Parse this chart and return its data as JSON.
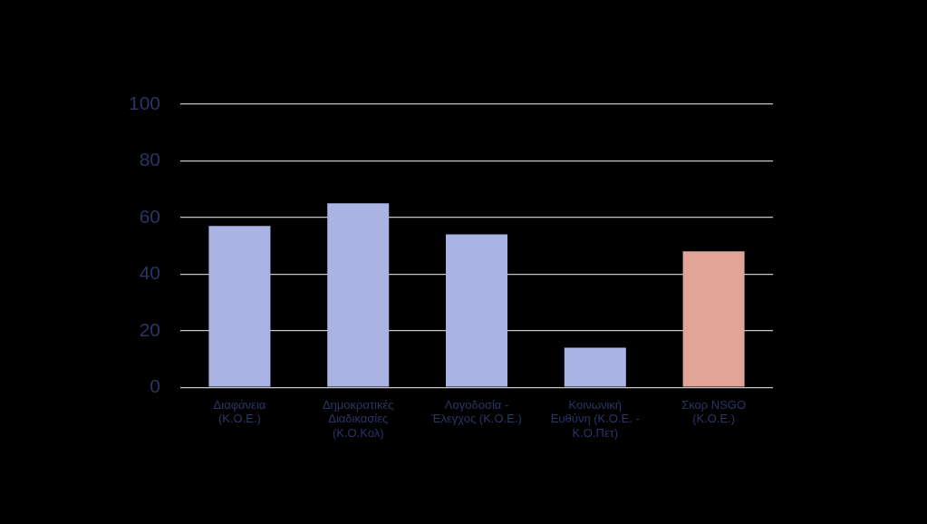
{
  "chart_data": {
    "type": "bar",
    "categories": [
      "Διαφάνεια (Κ.Ο.Ε.)",
      "Δημοκρατικές Διαδικασίες (Κ.Ο.Κολ)",
      "Λογοδοσία - Έλεγχος (Κ.Ο.Ε.)",
      "Κοινωνική Ευθύνη (Κ.Ο.Ε. - Κ.Ο.Πετ)",
      "Σκορ NSGO (Κ.Ο.Ε.)"
    ],
    "values": [
      57,
      65,
      54,
      14,
      48
    ],
    "colors": [
      "#a9b3e4",
      "#a9b3e4",
      "#a9b3e4",
      "#a9b3e4",
      "#e0a597"
    ],
    "ylim": [
      0,
      100
    ],
    "yticks": [
      0,
      20,
      40,
      60,
      80,
      100
    ],
    "grid": "y"
  }
}
